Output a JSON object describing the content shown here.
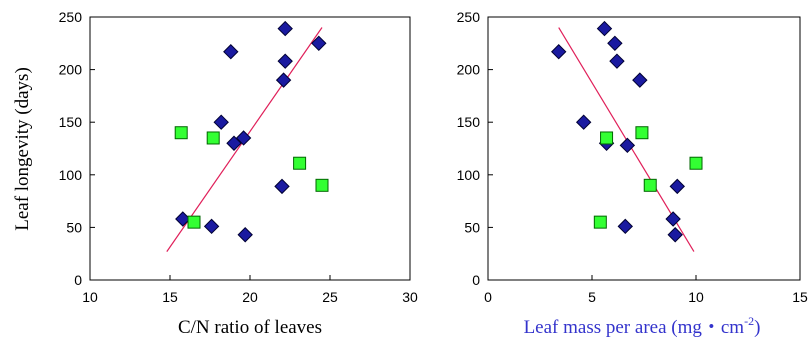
{
  "colors": {
    "diamond": "#1a1aa0",
    "square": "#33ff33",
    "trendline": "#e0205a",
    "right_xlabel": "#3333cc"
  },
  "shared_ylabel": "Leaf longevity (days)",
  "chart_data": [
    {
      "type": "scatter",
      "xlabel": "C/N ratio of leaves",
      "ylabel": "Leaf longevity (days)",
      "xlim": [
        10,
        30
      ],
      "ylim": [
        0,
        250
      ],
      "xticks": [
        "10",
        "15",
        "20",
        "25",
        "30"
      ],
      "yticks": [
        "0",
        "50",
        "100",
        "150",
        "200",
        "250"
      ],
      "grid": false,
      "series": [
        {
          "marker": "diamond",
          "points": [
            [
              15.8,
              58
            ],
            [
              17.6,
              51
            ],
            [
              18.2,
              150
            ],
            [
              18.8,
              217
            ],
            [
              19.0,
              130
            ],
            [
              19.6,
              135
            ],
            [
              19.7,
              43
            ],
            [
              22.0,
              89
            ],
            [
              22.1,
              190
            ],
            [
              22.2,
              208
            ],
            [
              22.2,
              239
            ],
            [
              24.3,
              225
            ]
          ]
        },
        {
          "marker": "square",
          "points": [
            [
              15.7,
              140
            ],
            [
              16.5,
              55
            ],
            [
              17.7,
              135
            ],
            [
              23.1,
              111
            ],
            [
              24.5,
              90
            ]
          ]
        }
      ],
      "trendline": [
        [
          14.8,
          27
        ],
        [
          24.5,
          240
        ]
      ]
    },
    {
      "type": "scatter",
      "xlabel": "Leaf  mass per area (mg・cm",
      "xlabel_superscript": "-2",
      "xlabel_close": ")",
      "xlim": [
        0,
        15
      ],
      "ylim": [
        0,
        250
      ],
      "xticks": [
        "0",
        "5",
        "10",
        "15"
      ],
      "yticks": [
        "0",
        "50",
        "100",
        "150",
        "200",
        "250"
      ],
      "grid": false,
      "series": [
        {
          "marker": "diamond",
          "points": [
            [
              3.4,
              217
            ],
            [
              4.6,
              150
            ],
            [
              5.6,
              239
            ],
            [
              5.7,
              130
            ],
            [
              6.1,
              225
            ],
            [
              6.2,
              208
            ],
            [
              6.6,
              51
            ],
            [
              6.7,
              128
            ],
            [
              7.3,
              190
            ],
            [
              8.9,
              58
            ],
            [
              9.0,
              43
            ],
            [
              9.1,
              89
            ]
          ]
        },
        {
          "marker": "square",
          "points": [
            [
              5.4,
              55
            ],
            [
              5.7,
              135
            ],
            [
              7.4,
              140
            ],
            [
              7.8,
              90
            ],
            [
              10.0,
              111
            ]
          ]
        }
      ],
      "trendline": [
        [
          3.4,
          240
        ],
        [
          9.9,
          27
        ]
      ]
    }
  ]
}
